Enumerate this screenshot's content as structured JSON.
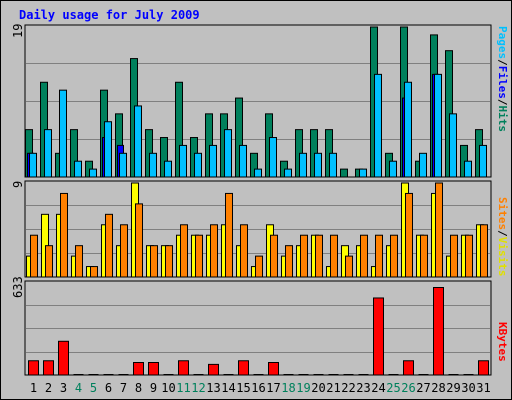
{
  "title": "Daily usage for July 2009",
  "panels": {
    "hits": {
      "ymax_label": "19",
      "legend": [
        "Pages",
        "Files",
        "Hits"
      ]
    },
    "visits": {
      "ymax_label": "9",
      "legend": [
        "Sites",
        "Visits"
      ]
    },
    "kbytes": {
      "ymax_label": "633",
      "legend": [
        "KBytes"
      ]
    }
  },
  "legend_separator": "/",
  "colors": {
    "background": "#c0c0c0",
    "plot": "#c0c0c0",
    "gridline": "#808080",
    "hits": "#00805c",
    "files": "#00c0ff",
    "pages": "#0000ff",
    "visits": "#ffff00",
    "sites": "#ff8000",
    "kbytes": "#ff0000",
    "title": "#0000ff",
    "weekend_label": "#00805c",
    "weekday_label": "#000000"
  },
  "chart_data": [
    {
      "type": "bar",
      "title": "Daily usage for July 2009",
      "categories": [
        "1",
        "2",
        "3",
        "4",
        "5",
        "6",
        "7",
        "8",
        "9",
        "10",
        "11",
        "12",
        "13",
        "14",
        "15",
        "16",
        "17",
        "18",
        "19",
        "20",
        "21",
        "22",
        "23",
        "24",
        "25",
        "26",
        "27",
        "28",
        "29",
        "30",
        "31"
      ],
      "weekend_days": [
        "4",
        "5",
        "11",
        "12",
        "18",
        "19",
        "25",
        "26"
      ],
      "ylim": [
        0,
        19
      ],
      "series": [
        {
          "name": "Hits",
          "values": [
            6,
            12,
            3,
            6,
            2,
            11,
            8,
            15,
            6,
            5,
            12,
            5,
            8,
            8,
            10,
            3,
            8,
            2,
            6,
            6,
            6,
            1,
            1,
            19,
            3,
            19,
            2,
            18,
            16,
            4,
            6
          ]
        },
        {
          "name": "Files",
          "values": [
            3,
            6,
            11,
            2,
            1,
            7,
            3,
            9,
            3,
            2,
            4,
            3,
            4,
            6,
            4,
            1,
            5,
            1,
            3,
            3,
            3,
            0,
            1,
            13,
            2,
            12,
            3,
            13,
            8,
            2,
            4
          ]
        },
        {
          "name": "Pages",
          "values": [
            3,
            0,
            0,
            0,
            0,
            5,
            4,
            0,
            0,
            0,
            0,
            0,
            0,
            0,
            0,
            0,
            0,
            0,
            0,
            0,
            0,
            0,
            0,
            0,
            0,
            10,
            0,
            13,
            0,
            0,
            0
          ]
        }
      ]
    },
    {
      "type": "bar",
      "categories": [
        "1",
        "2",
        "3",
        "4",
        "5",
        "6",
        "7",
        "8",
        "9",
        "10",
        "11",
        "12",
        "13",
        "14",
        "15",
        "16",
        "17",
        "18",
        "19",
        "20",
        "21",
        "22",
        "23",
        "24",
        "25",
        "26",
        "27",
        "28",
        "29",
        "30",
        "31"
      ],
      "ylim": [
        0,
        9
      ],
      "series": [
        {
          "name": "Visits",
          "values": [
            2,
            6,
            6,
            2,
            1,
            5,
            3,
            9,
            3,
            3,
            4,
            4,
            4,
            5,
            3,
            1,
            5,
            2,
            3,
            4,
            1,
            3,
            3,
            1,
            3,
            9,
            4,
            8,
            2,
            4,
            5
          ]
        },
        {
          "name": "Sites",
          "values": [
            4,
            3,
            8,
            3,
            1,
            6,
            5,
            7,
            3,
            3,
            5,
            4,
            5,
            8,
            5,
            2,
            4,
            3,
            4,
            4,
            4,
            2,
            4,
            4,
            4,
            8,
            4,
            9,
            4,
            4,
            5
          ]
        }
      ]
    },
    {
      "type": "bar",
      "categories": [
        "1",
        "2",
        "3",
        "4",
        "5",
        "6",
        "7",
        "8",
        "9",
        "10",
        "11",
        "12",
        "13",
        "14",
        "15",
        "16",
        "17",
        "18",
        "19",
        "20",
        "21",
        "22",
        "23",
        "24",
        "25",
        "26",
        "27",
        "28",
        "29",
        "30",
        "31"
      ],
      "ylim": [
        0,
        633
      ],
      "series": [
        {
          "name": "KBytes",
          "values": [
            98,
            98,
            232,
            0,
            0,
            0,
            0,
            86,
            86,
            0,
            98,
            0,
            73,
            0,
            98,
            0,
            86,
            0,
            0,
            0,
            0,
            0,
            0,
            530,
            0,
            98,
            0,
            602,
            0,
            0,
            98
          ]
        }
      ]
    }
  ]
}
